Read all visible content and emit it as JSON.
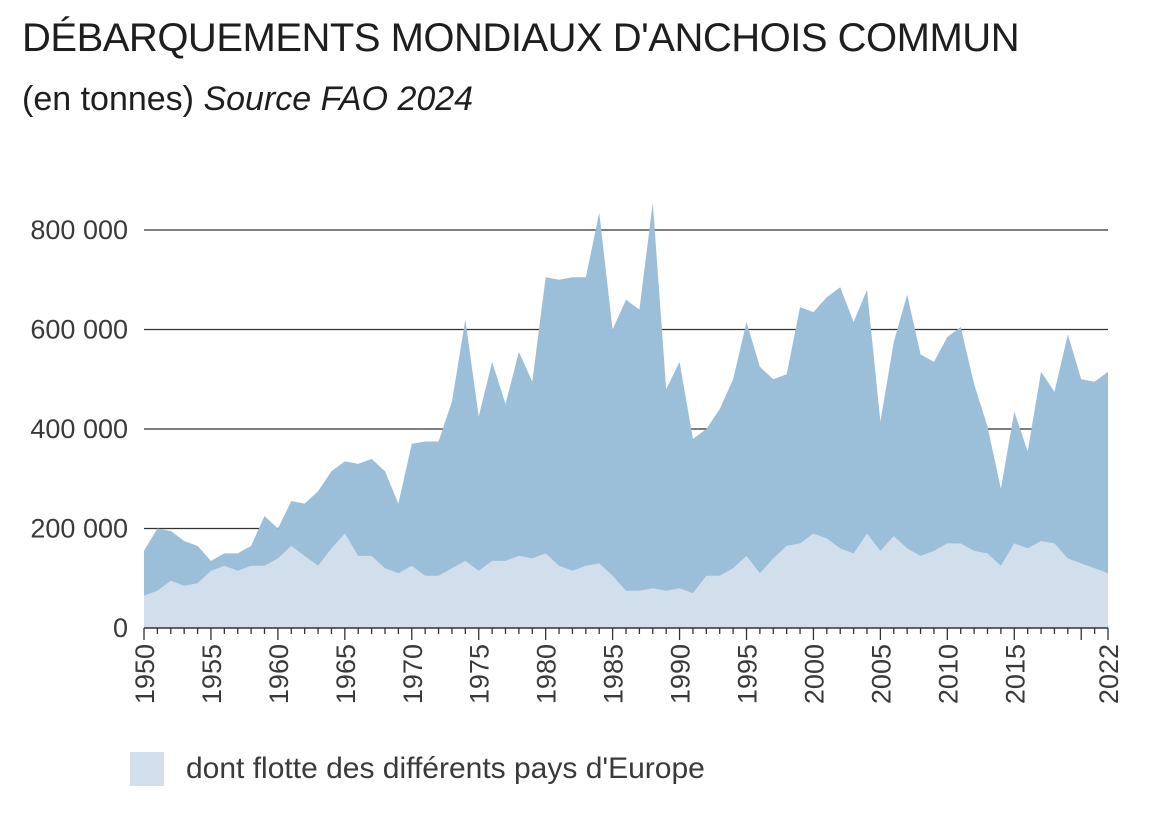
{
  "title": "DÉBARQUEMENTS MONDIAUX D'ANCHOIS COMMUN",
  "subtitle": "(en tonnes)",
  "source": "Source FAO 2024",
  "legend": {
    "europe_label": "dont flotte des différents pays d'Europe"
  },
  "colors": {
    "total": "#9bbfd9",
    "europe": "#d1dfec",
    "grid": "#333333"
  },
  "chart_data": {
    "type": "area",
    "ylim": [
      0,
      800000
    ],
    "y_ticks": [
      0,
      200000,
      400000,
      600000,
      800000
    ],
    "y_tick_labels": [
      "0",
      "200 000",
      "400 000",
      "600 000",
      "800 000"
    ],
    "x_tick_labels": [
      "1950",
      "1955",
      "1960",
      "1965",
      "1970",
      "1975",
      "1980",
      "1985",
      "1990",
      "1995",
      "2000",
      "2005",
      "2010",
      "2015",
      "2022"
    ],
    "x_tick_years": [
      1950,
      1955,
      1960,
      1965,
      1970,
      1975,
      1980,
      1985,
      1990,
      1995,
      2000,
      2005,
      2010,
      2015,
      2022
    ],
    "x": [
      1950,
      1951,
      1952,
      1953,
      1954,
      1955,
      1956,
      1957,
      1958,
      1959,
      1960,
      1961,
      1962,
      1963,
      1964,
      1965,
      1966,
      1967,
      1968,
      1969,
      1970,
      1971,
      1972,
      1973,
      1974,
      1975,
      1976,
      1977,
      1978,
      1979,
      1980,
      1981,
      1982,
      1983,
      1984,
      1985,
      1986,
      1987,
      1988,
      1989,
      1990,
      1991,
      1992,
      1993,
      1994,
      1995,
      1996,
      1997,
      1998,
      1999,
      2000,
      2001,
      2002,
      2003,
      2004,
      2005,
      2006,
      2007,
      2008,
      2009,
      2010,
      2011,
      2012,
      2013,
      2014,
      2015,
      2016,
      2017,
      2018,
      2019,
      2020,
      2021,
      2022
    ],
    "series": [
      {
        "values": [
          155000,
          200000,
          195000,
          175000,
          165000,
          135000,
          150000,
          150000,
          165000,
          225000,
          200000,
          255000,
          250000,
          275000,
          315000,
          335000,
          330000,
          340000,
          315000,
          250000,
          370000,
          375000,
          375000,
          455000,
          620000,
          425000,
          535000,
          450000,
          555000,
          495000,
          705000,
          700000,
          705000,
          705000,
          835000,
          600000,
          660000,
          640000,
          855000,
          480000,
          535000,
          380000,
          400000,
          440000,
          500000,
          615000,
          525000,
          500000,
          510000,
          645000,
          635000,
          665000,
          685000,
          615000,
          680000,
          415000,
          575000,
          670000,
          550000,
          535000,
          585000,
          605000,
          490000,
          405000,
          280000,
          435000,
          355000,
          515000,
          475000,
          590000,
          500000,
          495000,
          515000
        ]
      },
      {
        "name": "dont flotte des différents pays d'Europe",
        "values": [
          65000,
          75000,
          95000,
          85000,
          90000,
          115000,
          125000,
          115000,
          125000,
          125000,
          140000,
          165000,
          145000,
          125000,
          160000,
          190000,
          145000,
          145000,
          120000,
          110000,
          125000,
          105000,
          105000,
          120000,
          135000,
          115000,
          135000,
          135000,
          145000,
          140000,
          150000,
          125000,
          115000,
          125000,
          130000,
          105000,
          75000,
          75000,
          80000,
          75000,
          80000,
          70000,
          105000,
          105000,
          120000,
          145000,
          110000,
          140000,
          165000,
          170000,
          190000,
          180000,
          160000,
          150000,
          190000,
          155000,
          185000,
          160000,
          145000,
          155000,
          170000,
          170000,
          155000,
          150000,
          125000,
          170000,
          160000,
          175000,
          170000,
          140000,
          130000,
          120000,
          110000
        ]
      }
    ]
  }
}
